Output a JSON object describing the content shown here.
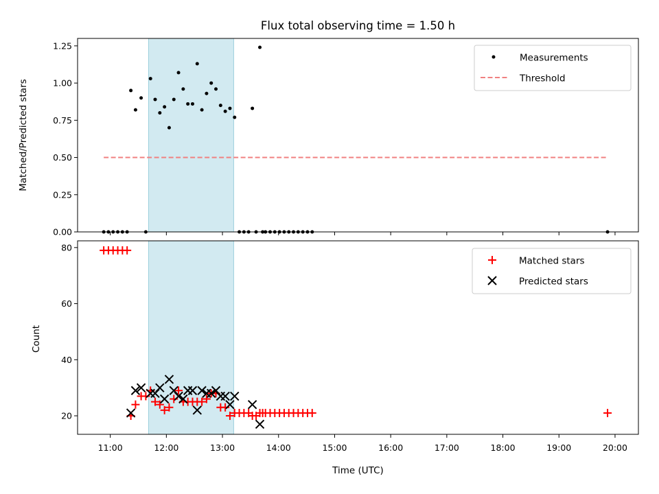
{
  "colors": {
    "measurement": "#000000",
    "threshold": "#f08080",
    "matched": "#ff0000",
    "predicted": "#000000",
    "span": "#add8e6"
  },
  "chart_data": [
    {
      "type": "scatter",
      "title": "Flux total observing time = 1.50 h",
      "xlabel": "",
      "ylabel": "Matched/Predicted stars",
      "xlim": [
        "10:25",
        "20:25"
      ],
      "ylim": [
        0,
        1.3
      ],
      "yticks": [
        0.0,
        0.25,
        0.5,
        0.75,
        1.0,
        1.25
      ],
      "ytick_labels": [
        "0.00",
        "0.25",
        "0.50",
        "0.75",
        "1.00",
        "1.25"
      ],
      "shaded_span": [
        "11:41",
        "13:12"
      ],
      "legend_position": "top-right",
      "series": [
        {
          "name": "Measurements",
          "kind": "points",
          "x": [
            "10:53",
            "10:58",
            "11:03",
            "11:08",
            "11:13",
            "11:18",
            "11:22",
            "11:27",
            "11:33",
            "11:38",
            "11:43",
            "11:48",
            "11:53",
            "11:58",
            "12:03",
            "12:08",
            "12:13",
            "12:18",
            "12:23",
            "12:28",
            "12:33",
            "12:38",
            "12:43",
            "12:48",
            "12:53",
            "12:58",
            "13:03",
            "13:08",
            "13:13",
            "13:18",
            "13:23",
            "13:28",
            "13:32",
            "13:36",
            "13:40",
            "13:43",
            "13:46",
            "13:51",
            "13:56",
            "14:01",
            "14:06",
            "14:11",
            "14:16",
            "14:21",
            "14:26",
            "14:31",
            "14:36",
            "19:52"
          ],
          "y": [
            0,
            0,
            0,
            0,
            0,
            0,
            0.95,
            0.82,
            0.9,
            0,
            1.03,
            0.89,
            0.8,
            0.84,
            0.7,
            0.89,
            1.07,
            0.96,
            0.86,
            0.86,
            1.13,
            0.82,
            0.93,
            1.0,
            0.96,
            0.85,
            0.81,
            0.83,
            0.77,
            0,
            0,
            0,
            0.83,
            0,
            1.24,
            0,
            0,
            0,
            0,
            0,
            0,
            0,
            0,
            0,
            0,
            0,
            0,
            0
          ]
        },
        {
          "name": "Threshold",
          "kind": "dashed-line",
          "x": [
            "10:53",
            "19:52"
          ],
          "y": [
            0.5,
            0.5
          ]
        }
      ]
    },
    {
      "type": "scatter",
      "title": "",
      "xlabel": "Time (UTC)",
      "ylabel": "Count",
      "xlim": [
        "10:25",
        "20:25"
      ],
      "ylim": [
        13.4,
        82.4
      ],
      "yticks": [
        20,
        40,
        60,
        80
      ],
      "ytick_labels": [
        "20",
        "40",
        "60",
        "80"
      ],
      "xticks": [
        "11:00",
        "12:00",
        "13:00",
        "14:00",
        "15:00",
        "16:00",
        "17:00",
        "18:00",
        "19:00",
        "20:00"
      ],
      "shaded_span": [
        "11:41",
        "13:12"
      ],
      "legend_position": "top-right",
      "series": [
        {
          "name": "Matched stars",
          "marker": "plus",
          "x": [
            "10:53",
            "10:58",
            "11:03",
            "11:08",
            "11:13",
            "11:18",
            "11:22",
            "11:27",
            "11:33",
            "11:38",
            "11:43",
            "11:48",
            "11:53",
            "11:58",
            "12:03",
            "12:08",
            "12:13",
            "12:18",
            "12:23",
            "12:28",
            "12:33",
            "12:38",
            "12:43",
            "12:48",
            "12:53",
            "12:58",
            "13:03",
            "13:08",
            "13:13",
            "13:18",
            "13:23",
            "13:28",
            "13:32",
            "13:36",
            "13:40",
            "13:43",
            "13:46",
            "13:51",
            "13:56",
            "14:01",
            "14:06",
            "14:11",
            "14:16",
            "14:21",
            "14:26",
            "14:31",
            "14:36",
            "19:52"
          ],
          "y": [
            79,
            79,
            79,
            79,
            79,
            79,
            20,
            24,
            27,
            27,
            29,
            25,
            24,
            22,
            23,
            26,
            29,
            25,
            25,
            25,
            25,
            25,
            26,
            28,
            28,
            23,
            23,
            20,
            21,
            21,
            21,
            21,
            20,
            20,
            21,
            21,
            21,
            21,
            21,
            21,
            21,
            21,
            21,
            21,
            21,
            21,
            21,
            21
          ]
        },
        {
          "name": "Predicted stars",
          "marker": "x",
          "x": [
            "11:22",
            "11:27",
            "11:33",
            "11:43",
            "11:48",
            "11:53",
            "11:58",
            "12:03",
            "12:08",
            "12:13",
            "12:18",
            "12:23",
            "12:28",
            "12:33",
            "12:38",
            "12:43",
            "12:48",
            "12:53",
            "12:58",
            "13:03",
            "13:08",
            "13:13",
            "13:32",
            "13:40"
          ],
          "y": [
            21,
            29,
            30,
            28,
            28,
            30,
            26,
            33,
            29,
            27,
            26,
            29,
            29,
            22,
            29,
            28,
            28,
            29,
            27,
            27,
            24,
            27,
            24,
            17
          ]
        }
      ]
    }
  ]
}
